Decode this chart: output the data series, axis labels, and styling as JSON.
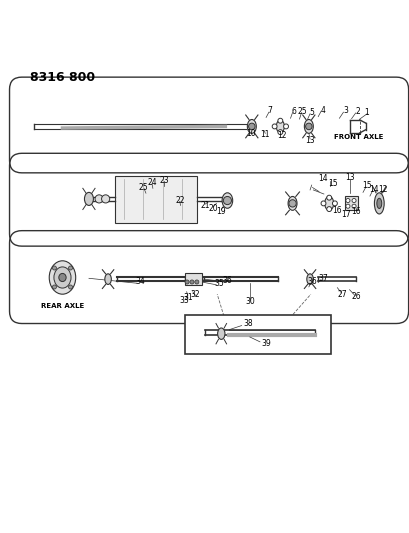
{
  "title": "8316 800",
  "background_color": "#ffffff",
  "line_color": "#333333",
  "text_color": "#000000",
  "figsize": [
    4.1,
    5.33
  ],
  "dpi": 100,
  "labels": {
    "front_axle": "FRONT AXLE",
    "rear_axle": "REAR AXLE"
  }
}
